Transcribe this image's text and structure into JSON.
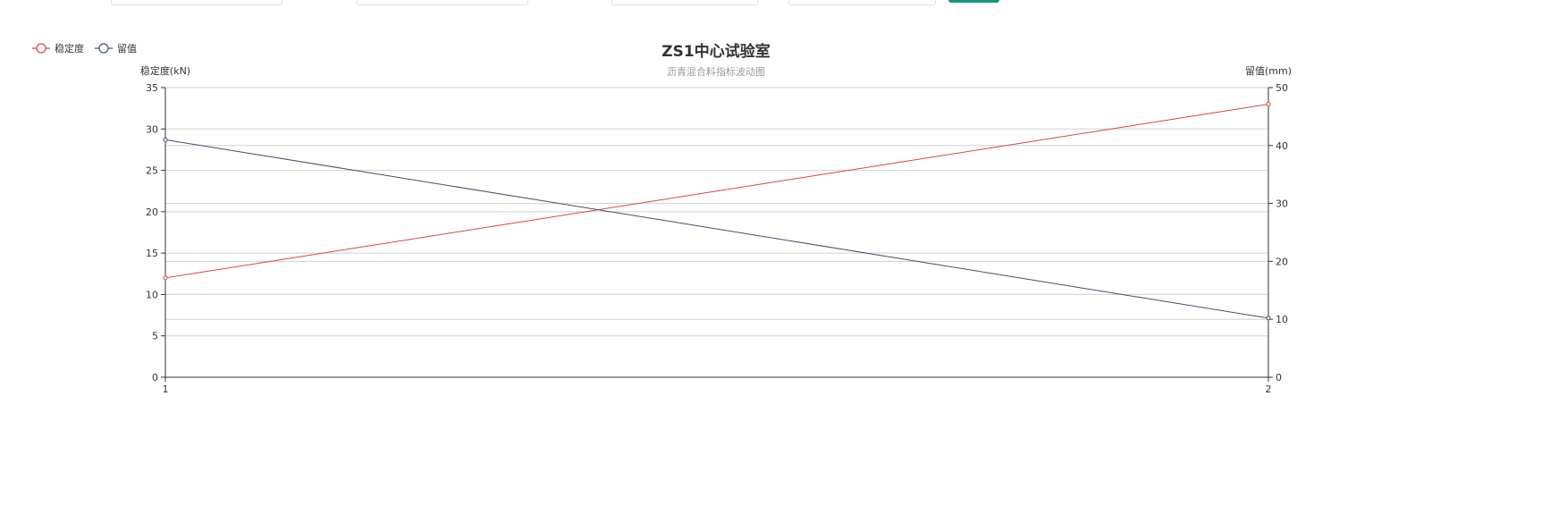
{
  "filter_bar": {
    "query_button_color": "#12967f"
  },
  "chart_data": {
    "type": "line",
    "title": "ZS1中心试验室",
    "subtitle": "沥青混合料指标波动图",
    "x": [
      "1",
      "2"
    ],
    "left_axis": {
      "label": "稳定度(kN)",
      "range": [
        0,
        35
      ],
      "ticks": [
        "0",
        "5",
        "10",
        "15",
        "20",
        "25",
        "30",
        "35"
      ]
    },
    "right_axis": {
      "label": "留值(mm)",
      "range": [
        0,
        50
      ],
      "ticks": [
        "0",
        "10",
        "20",
        "30",
        "40",
        "50"
      ]
    },
    "series": [
      {
        "name": "稳定度",
        "axis": "left",
        "color": "#d64545",
        "values": [
          12.0,
          33.0
        ]
      },
      {
        "name": "留值",
        "axis": "right",
        "color": "#3d5166",
        "values": [
          41.0,
          10.2
        ]
      }
    ],
    "legend_position": "top-left",
    "grid": true
  }
}
